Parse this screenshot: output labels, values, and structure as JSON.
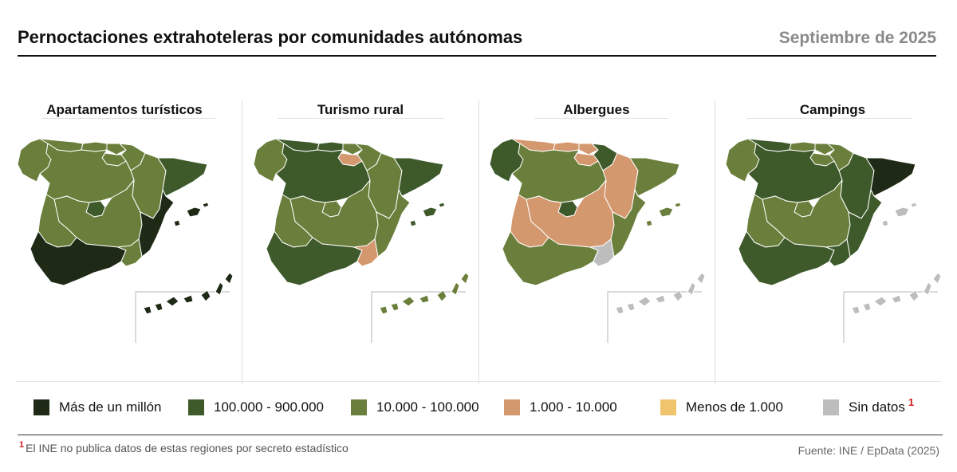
{
  "header": {
    "title": "Pernoctaciones extrahoteleras por comunidades autónomas",
    "date": "Septiembre de 2025"
  },
  "colors": {
    "c1": "#1f2a16",
    "c2": "#3e5a2b",
    "c3": "#6b7f3c",
    "c4": "#d4986f",
    "c5": "#f0c36d",
    "nd": "#bdbdbd"
  },
  "legend": [
    {
      "key": "c1",
      "label": "Más de un millón"
    },
    {
      "key": "c2",
      "label": "100.000 - 900.000"
    },
    {
      "key": "c3",
      "label": "10.000 - 100.000"
    },
    {
      "key": "c4",
      "label": "1.000 - 10.000"
    },
    {
      "key": "c5",
      "label": "Menos de 1.000"
    },
    {
      "key": "nd",
      "label": "Sin datos",
      "note": "1"
    }
  ],
  "maps": [
    {
      "title": "Apartamentos turísticos",
      "regions": {
        "galicia": "c3",
        "asturias": "c3",
        "cantabria": "c3",
        "pais_vasco": "c3",
        "navarra": "c3",
        "la_rioja": "c3",
        "aragon": "c3",
        "cataluna": "c2",
        "castilla_leon": "c3",
        "madrid": "c2",
        "castilla_la_mancha": "c3",
        "valencia": "c1",
        "extremadura": "c3",
        "andalucia": "c1",
        "murcia": "c3",
        "baleares": "c1",
        "canarias": "c1"
      }
    },
    {
      "title": "Turismo rural",
      "regions": {
        "galicia": "c3",
        "asturias": "c2",
        "cantabria": "c2",
        "pais_vasco": "c3",
        "navarra": "c3",
        "la_rioja": "c4",
        "aragon": "c3",
        "cataluna": "c2",
        "castilla_leon": "c2",
        "madrid": "c3",
        "castilla_la_mancha": "c3",
        "valencia": "c3",
        "extremadura": "c3",
        "andalucia": "c2",
        "murcia": "c4",
        "baleares": "c2",
        "canarias": "c3"
      }
    },
    {
      "title": "Albergues",
      "regions": {
        "galicia": "c2",
        "asturias": "c4",
        "cantabria": "c4",
        "pais_vasco": "c4",
        "navarra": "c2",
        "la_rioja": "c4",
        "aragon": "c4",
        "cataluna": "c3",
        "castilla_leon": "c3",
        "madrid": "c2",
        "castilla_la_mancha": "c4",
        "valencia": "c3",
        "extremadura": "c4",
        "andalucia": "c3",
        "murcia": "nd",
        "baleares": "c3",
        "canarias": "nd"
      }
    },
    {
      "title": "Campings",
      "regions": {
        "galicia": "c3",
        "asturias": "c2",
        "cantabria": "c3",
        "pais_vasco": "c3",
        "navarra": "c3",
        "la_rioja": "c3",
        "aragon": "c2",
        "cataluna": "c1",
        "castilla_leon": "c2",
        "madrid": "c3",
        "castilla_la_mancha": "c3",
        "valencia": "c2",
        "extremadura": "c3",
        "andalucia": "c2",
        "murcia": "c2",
        "baleares": "nd",
        "canarias": "nd"
      }
    }
  ],
  "footnote": {
    "mark": "1",
    "text": "El INE no publica datos de estas regiones por secreto estadístico"
  },
  "source": "Fuente: INE / EpData (2025)"
}
